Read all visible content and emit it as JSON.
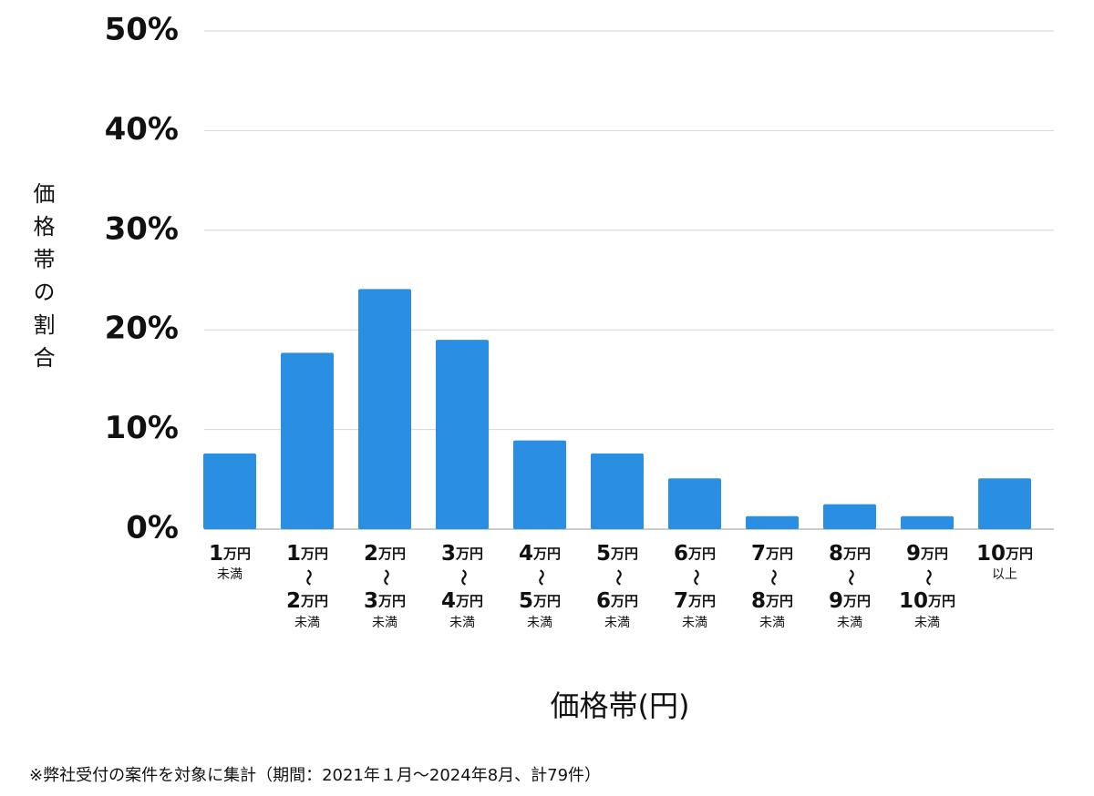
{
  "chart_data": {
    "type": "bar",
    "y_label": "価格帯の割合",
    "x_label": "価格帯(円)",
    "footnote": "※弊社受付の案件を対象に集計（期間：2021年１月〜2024年8月、計79件）",
    "categories": [
      [
        "1万円",
        "未満"
      ],
      [
        "1万円",
        "〜",
        "2万円",
        "未満"
      ],
      [
        "2万円",
        "〜",
        "3万円",
        "未満"
      ],
      [
        "3万円",
        "〜",
        "4万円",
        "未満"
      ],
      [
        "4万円",
        "〜",
        "5万円",
        "未満"
      ],
      [
        "5万円",
        "〜",
        "6万円",
        "未満"
      ],
      [
        "6万円",
        "〜",
        "7万円",
        "未満"
      ],
      [
        "7万円",
        "〜",
        "8万円",
        "未満"
      ],
      [
        "8万円",
        "〜",
        "9万円",
        "未満"
      ],
      [
        "9万円",
        "〜",
        "10万円",
        "未満"
      ],
      [
        "10万円",
        "以上"
      ]
    ],
    "values": [
      7.6,
      17.7,
      24.1,
      19.0,
      8.9,
      7.6,
      5.1,
      1.3,
      2.5,
      1.3,
      5.1
    ],
    "color": "#2a8fe2",
    "ylim": [
      0,
      50
    ],
    "yticks": [
      {
        "value": 0,
        "label": "0%"
      },
      {
        "value": 10,
        "label": "10%"
      },
      {
        "value": 20,
        "label": "20%"
      },
      {
        "value": 30,
        "label": "30%"
      },
      {
        "value": 40,
        "label": "40%"
      },
      {
        "value": 50,
        "label": "50%"
      }
    ],
    "grid": true
  }
}
